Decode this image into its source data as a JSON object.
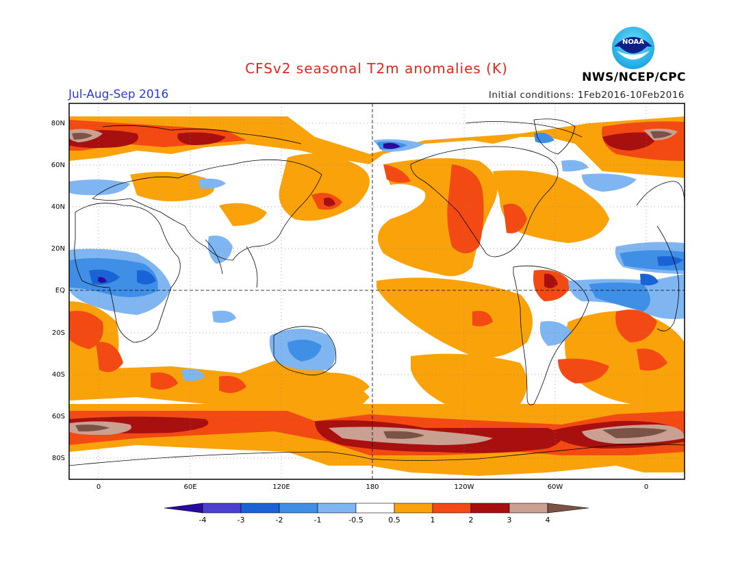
{
  "header": {
    "title": "CFSv2 seasonal T2m anomalies (K)",
    "period": "Jul-Aug-Sep 2016",
    "initial_conditions": "Initial conditions: 1Feb2016-10Feb2016",
    "agency": "NWS/NCEP/CPC",
    "logo_text": "NOAA"
  },
  "map": {
    "lat_labels": [
      "80N",
      "60N",
      "40N",
      "20N",
      "EQ",
      "20S",
      "40S",
      "60S",
      "80S"
    ],
    "lon_labels": [
      "0",
      "60E",
      "120E",
      "180",
      "120W",
      "60W",
      "0"
    ]
  },
  "colorbar": {
    "labels": [
      "-4",
      "-3",
      "-2",
      "-1",
      "-0.5",
      "0.5",
      "1",
      "2",
      "3",
      "4"
    ],
    "colors": [
      "#2a0b9e",
      "#4a3fd0",
      "#1a63d6",
      "#3f8fe6",
      "#7fb6f2",
      "#ffffff",
      "#f9a20a",
      "#f24a12",
      "#a80f0f",
      "#c9a091",
      "#7a5346"
    ]
  }
}
